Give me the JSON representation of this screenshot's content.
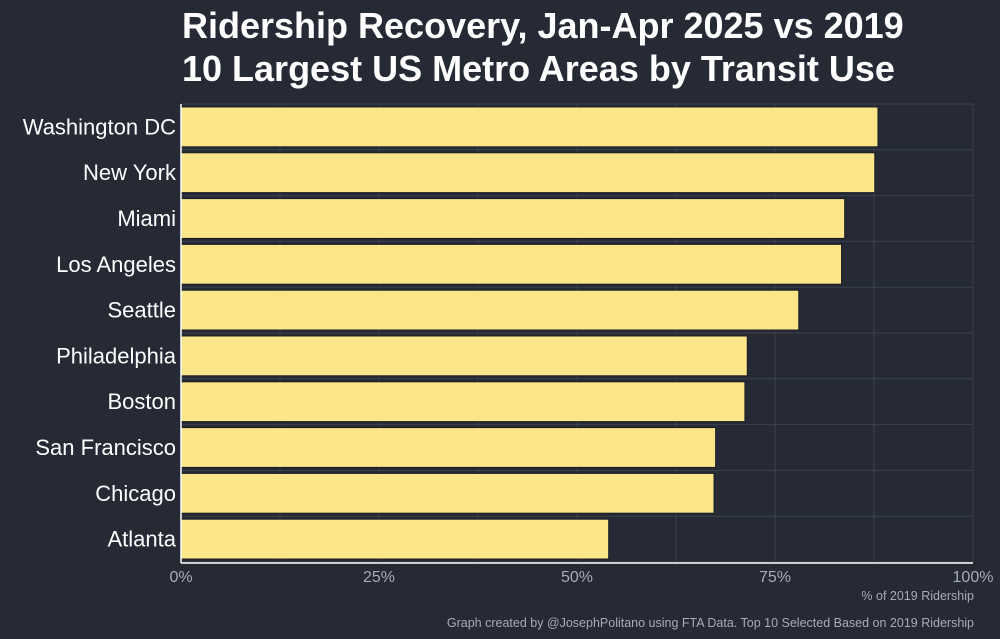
{
  "title_line1": "Ridership Recovery, Jan-Apr 2025 vs 2019",
  "title_line2": "10 Largest US Metro Areas by Transit Use",
  "source_note": "Graph created by @JosephPolitano using FTA Data. Top 10 Selected Based on 2019 Ridership",
  "chart_data": {
    "type": "bar",
    "orientation": "horizontal",
    "title": "Ridership Recovery, Jan-Apr 2025 vs 2019 10 Largest US Metro Areas by Transit Use",
    "xlabel": "% of 2019 Ridership",
    "ylabel": "",
    "xlim": [
      0,
      100
    ],
    "x_ticks": [
      0,
      25,
      50,
      75,
      100
    ],
    "x_tick_labels": [
      "0%",
      "25%",
      "50%",
      "75%",
      "100%"
    ],
    "categories": [
      "Washington DC",
      "New York",
      "Miami",
      "Los Angeles",
      "Seattle",
      "Philadelphia",
      "Boston",
      "San Francisco",
      "Chicago",
      "Atlanta"
    ],
    "values": [
      88.0,
      87.6,
      83.8,
      83.4,
      78.0,
      71.5,
      71.2,
      67.5,
      67.3,
      54.0
    ],
    "grid": true,
    "legend": "none",
    "bar_color": "#fde68a",
    "bar_edge_color": "#1a1e26",
    "background_color": "#252a35",
    "grid_color": "#3a404c"
  }
}
